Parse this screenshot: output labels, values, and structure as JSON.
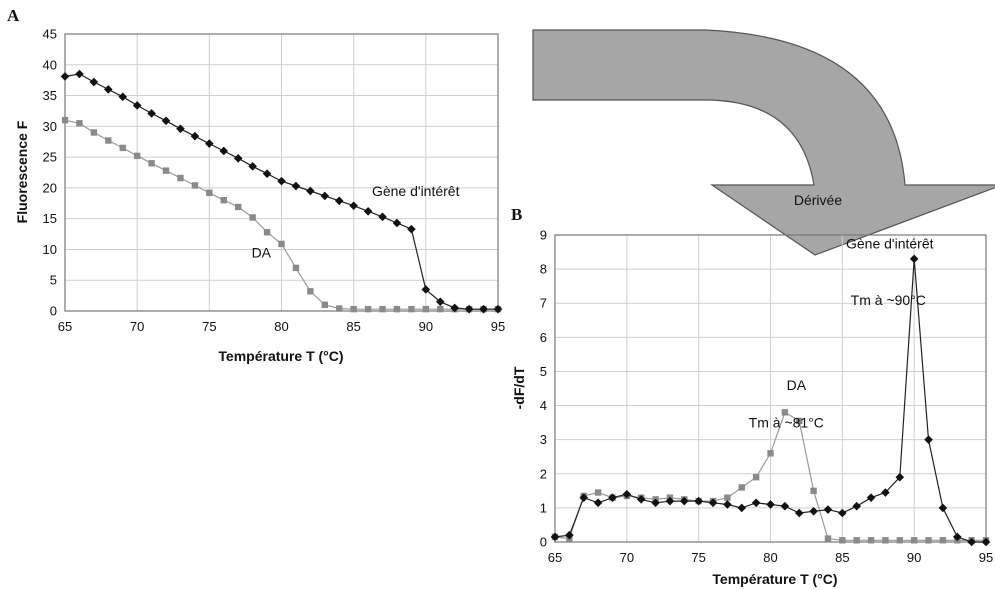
{
  "chart_data": [
    {
      "id": "A",
      "type": "line",
      "panel_label": "A",
      "xlabel": "Température T (°C)",
      "ylabel": "Fluorescence F",
      "xlim": [
        65,
        95
      ],
      "ylim": [
        0,
        45
      ],
      "xticks": [
        65,
        70,
        75,
        80,
        85,
        90,
        95
      ],
      "yticks": [
        0,
        5,
        10,
        15,
        20,
        25,
        30,
        35,
        40,
        45
      ],
      "grid": true,
      "annotations": [
        {
          "text": "Gène d'intérêt",
          "x": 89.3,
          "y": 19.5
        },
        {
          "text": "DA",
          "x": 78.6,
          "y": 9.5
        }
      ],
      "series": [
        {
          "marker": "diamond",
          "color": "#111111",
          "x": [
            65,
            66,
            67,
            68,
            69,
            70,
            71,
            72,
            73,
            74,
            75,
            76,
            77,
            78,
            79,
            80,
            81,
            82,
            83,
            84,
            85,
            86,
            87,
            88,
            89,
            90,
            91,
            92,
            93,
            94,
            95
          ],
          "y": [
            38.1,
            38.5,
            37.2,
            36.0,
            34.8,
            33.4,
            32.1,
            30.9,
            29.6,
            28.4,
            27.2,
            26.0,
            24.8,
            23.5,
            22.3,
            21.1,
            20.3,
            19.5,
            18.7,
            17.9,
            17.1,
            16.2,
            15.3,
            14.3,
            13.3,
            3.5,
            1.5,
            0.5,
            0.3,
            0.3,
            0.3
          ]
        },
        {
          "marker": "square",
          "color": "#8a8a8a",
          "x": [
            65,
            66,
            67,
            68,
            69,
            70,
            71,
            72,
            73,
            74,
            75,
            76,
            77,
            78,
            79,
            80,
            81,
            82,
            83,
            84,
            85,
            86,
            87,
            88,
            89,
            90,
            91,
            92,
            93,
            94,
            95
          ],
          "y": [
            31.0,
            30.5,
            29.0,
            27.7,
            26.5,
            25.2,
            24.0,
            22.8,
            21.6,
            20.4,
            19.2,
            18.0,
            16.9,
            15.2,
            12.8,
            10.9,
            7.0,
            3.2,
            1.0,
            0.4,
            0.3,
            0.3,
            0.3,
            0.3,
            0.3,
            0.3,
            0.3,
            0.3,
            0.3,
            0.3,
            0.3
          ]
        }
      ]
    },
    {
      "id": "B",
      "type": "line",
      "panel_label": "B",
      "xlabel": "Température T (°C)",
      "ylabel": "-dF/dT",
      "xlim": [
        65,
        95
      ],
      "ylim": [
        0,
        9
      ],
      "xticks": [
        65,
        70,
        75,
        80,
        85,
        90,
        95
      ],
      "yticks": [
        0,
        1,
        2,
        3,
        4,
        5,
        6,
        7,
        8,
        9
      ],
      "grid": true,
      "annotations": [
        {
          "text": "Gène d'intérêt",
          "x": 88.3,
          "y": 8.75
        },
        {
          "text": "Tm à ~90°C",
          "x": 88.2,
          "y": 7.1
        },
        {
          "text": "DA",
          "x": 81.8,
          "y": 4.6
        },
        {
          "text": "Tm à ~81°C",
          "x": 81.1,
          "y": 3.5
        }
      ],
      "series": [
        {
          "marker": "diamond",
          "color": "#111111",
          "x": [
            65,
            66,
            67,
            68,
            69,
            70,
            71,
            72,
            73,
            74,
            75,
            76,
            77,
            78,
            79,
            80,
            81,
            82,
            83,
            84,
            85,
            86,
            87,
            88,
            89,
            90,
            91,
            92,
            93,
            94,
            95
          ],
          "y": [
            0.15,
            0.2,
            1.3,
            1.15,
            1.3,
            1.4,
            1.25,
            1.15,
            1.2,
            1.2,
            1.2,
            1.15,
            1.1,
            1.0,
            1.15,
            1.1,
            1.05,
            0.85,
            0.9,
            0.95,
            0.85,
            1.05,
            1.3,
            1.45,
            1.9,
            8.3,
            3.0,
            1.0,
            0.15,
            0.0,
            0.0
          ]
        },
        {
          "marker": "square",
          "color": "#8a8a8a",
          "x": [
            65,
            66,
            67,
            68,
            69,
            70,
            71,
            72,
            73,
            74,
            75,
            76,
            77,
            78,
            79,
            80,
            81,
            82,
            83,
            84,
            85,
            86,
            87,
            88,
            89,
            90,
            91,
            92,
            93,
            94,
            95
          ],
          "y": [
            0.15,
            0.1,
            1.35,
            1.45,
            1.3,
            1.35,
            1.3,
            1.25,
            1.3,
            1.25,
            1.2,
            1.2,
            1.3,
            1.6,
            1.9,
            2.6,
            3.8,
            3.55,
            1.5,
            0.1,
            0.05,
            0.05,
            0.05,
            0.05,
            0.05,
            0.05,
            0.05,
            0.05,
            0.05,
            0.05,
            0.05
          ]
        }
      ]
    }
  ],
  "arrow_label": "Dérivée",
  "arrow_color": "#a6a6a6"
}
